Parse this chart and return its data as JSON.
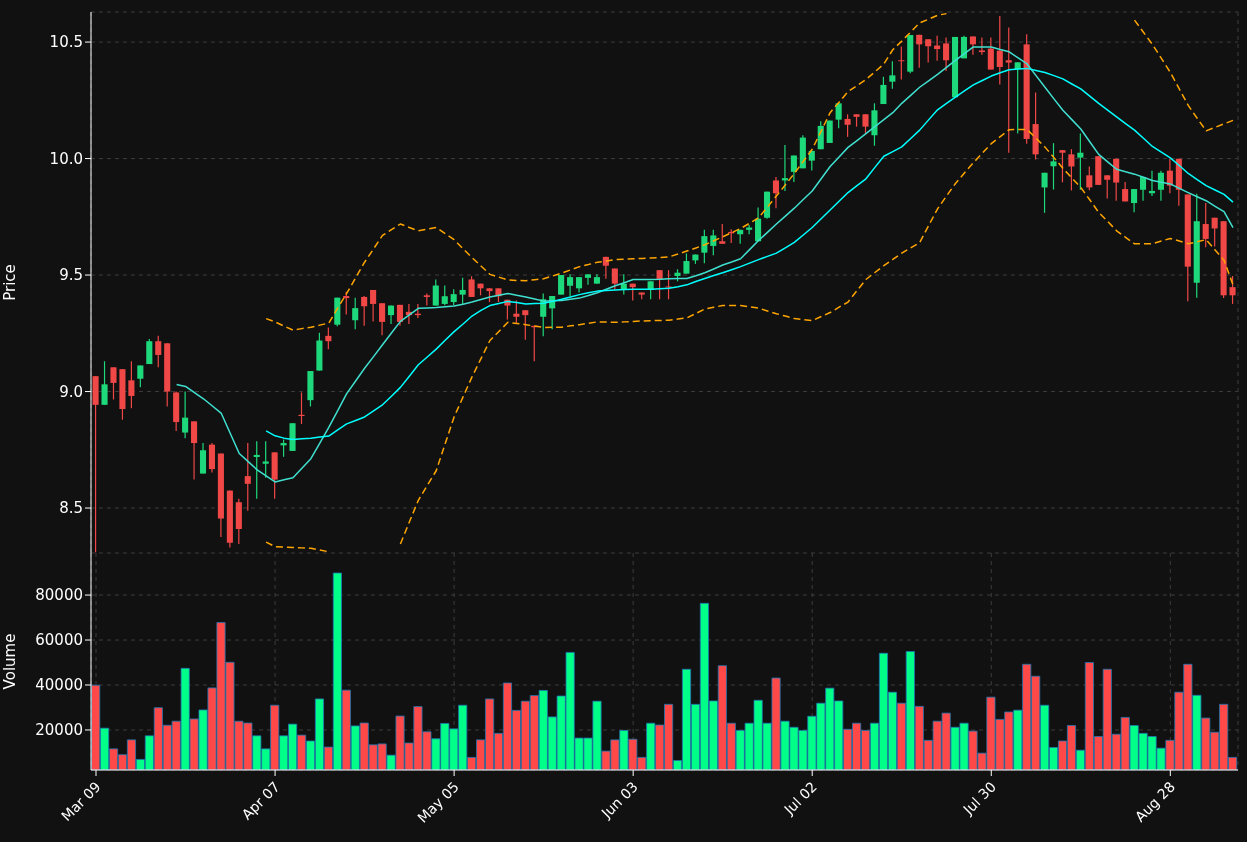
{
  "chart_data": [
    {
      "type": "candlestick",
      "ylabel": "Price",
      "grid": true,
      "tick_labels": "y",
      "ylim": [
        8.307,
        10.629
      ],
      "yticks": [
        8.5,
        {
          "value": 9,
          "label": "9.0"
        },
        9.5,
        {
          "value": 10,
          "label": "10.0"
        },
        10.5
      ],
      "categories": [
        null,
        null,
        null,
        null,
        null,
        null,
        null,
        null,
        null,
        null,
        null,
        null,
        null,
        null,
        null,
        null,
        null,
        null,
        null,
        null,
        null,
        null,
        null,
        null,
        null,
        null,
        null,
        null,
        null,
        null,
        null,
        null,
        null,
        null,
        null,
        null,
        null,
        null,
        null,
        null,
        null,
        null,
        null,
        null,
        null,
        null,
        null,
        null,
        null,
        null,
        null,
        null,
        null,
        null,
        null,
        null,
        null,
        null,
        null,
        null,
        null,
        null,
        null,
        null,
        null,
        null,
        null,
        null,
        null,
        null,
        null,
        null,
        null,
        null,
        null,
        null,
        null,
        null,
        null,
        null,
        null,
        null,
        null,
        null,
        null,
        null,
        null,
        null,
        null,
        null,
        null,
        null,
        null,
        null,
        null,
        null,
        null,
        null,
        null,
        null,
        null,
        null,
        null,
        null,
        null,
        null,
        null,
        null,
        null,
        null,
        null,
        null,
        null,
        null,
        null,
        null,
        null,
        null,
        null,
        null,
        null,
        null,
        null,
        null,
        null,
        null,
        null,
        null
      ],
      "ohlc": [
        [
          9.066,
          9.066,
          8.31,
          8.943
        ],
        [
          8.943,
          9.13,
          8.943,
          9.031
        ],
        [
          9.104,
          9.104,
          8.966,
          9.037
        ],
        [
          9.096,
          9.096,
          8.879,
          8.925
        ],
        [
          9.048,
          9.13,
          8.928,
          8.981
        ],
        [
          9.055,
          9.112,
          9.018,
          9.112
        ],
        [
          9.118,
          9.225,
          9.118,
          9.216
        ],
        [
          9.216,
          9.239,
          9.104,
          9.157
        ],
        [
          9.207,
          9.207,
          8.936,
          9.0
        ],
        [
          8.996,
          9.0,
          8.831,
          8.869
        ],
        [
          8.824,
          9.0,
          8.8,
          8.888
        ],
        [
          8.872,
          8.872,
          8.622,
          8.779
        ],
        [
          8.648,
          8.779,
          8.648,
          8.748
        ],
        [
          8.772,
          8.779,
          8.652,
          8.667
        ],
        [
          8.734,
          8.734,
          8.376,
          8.455
        ],
        [
          8.575,
          8.575,
          8.331,
          8.351
        ],
        [
          8.525,
          8.54,
          8.346,
          8.41
        ],
        [
          8.637,
          8.779,
          8.488,
          8.604
        ],
        [
          8.719,
          8.787,
          8.54,
          8.728
        ],
        [
          8.69,
          8.787,
          8.63,
          8.7
        ],
        [
          8.739,
          8.739,
          8.54,
          8.622
        ],
        [
          8.769,
          8.794,
          8.72,
          8.779
        ],
        [
          8.745,
          8.864,
          8.745,
          8.864
        ],
        [
          8.9,
          8.996,
          8.861,
          8.895
        ],
        [
          8.963,
          9.088,
          8.936,
          9.088
        ],
        [
          9.09,
          9.252,
          9.09,
          9.219
        ],
        [
          9.239,
          9.275,
          9.182,
          9.216
        ],
        [
          9.287,
          9.403,
          9.28,
          9.403
        ],
        [
          9.41,
          9.428,
          9.331,
          9.401
        ],
        [
          9.306,
          9.403,
          9.267,
          9.358
        ],
        [
          9.406,
          9.41,
          9.282,
          9.366
        ],
        [
          9.436,
          9.436,
          9.301,
          9.376
        ],
        [
          9.379,
          9.379,
          9.242,
          9.299
        ],
        [
          9.328,
          9.369,
          9.29,
          9.369
        ],
        [
          9.372,
          9.372,
          9.282,
          9.299
        ],
        [
          9.342,
          9.376,
          9.29,
          9.328
        ],
        [
          9.334,
          9.376,
          9.316,
          9.328
        ],
        [
          9.413,
          9.421,
          9.369,
          9.406
        ],
        [
          9.369,
          9.481,
          9.369,
          9.455
        ],
        [
          9.376,
          9.455,
          9.37,
          9.409
        ],
        [
          9.384,
          9.439,
          9.37,
          9.418
        ],
        [
          9.416,
          9.488,
          9.376,
          9.436
        ],
        [
          9.481,
          9.495,
          9.406,
          9.406
        ],
        [
          9.463,
          9.463,
          9.413,
          9.443
        ],
        [
          9.443,
          9.443,
          9.384,
          9.431
        ],
        [
          9.443,
          9.443,
          9.384,
          9.409
        ],
        [
          9.394,
          9.394,
          9.309,
          9.369
        ],
        [
          9.334,
          9.391,
          9.294,
          9.321
        ],
        [
          9.349,
          9.349,
          9.222,
          9.328
        ],
        [
          9.282,
          9.282,
          9.13,
          9.276
        ],
        [
          9.321,
          9.421,
          9.237,
          9.396
        ],
        [
          9.357,
          9.41,
          9.267,
          9.41
        ],
        [
          9.416,
          9.5,
          9.416,
          9.5
        ],
        [
          9.454,
          9.503,
          9.41,
          9.491
        ],
        [
          9.443,
          9.491,
          9.425,
          9.491
        ],
        [
          9.488,
          9.503,
          9.458,
          9.503
        ],
        [
          9.463,
          9.503,
          9.463,
          9.491
        ],
        [
          9.578,
          9.578,
          9.484,
          9.54
        ],
        [
          9.528,
          9.528,
          9.436,
          9.463
        ],
        [
          9.44,
          9.503,
          9.416,
          9.463
        ],
        [
          9.463,
          9.463,
          9.391,
          9.448
        ],
        [
          9.425,
          9.425,
          9.396,
          9.416
        ],
        [
          9.436,
          9.473,
          9.396,
          9.473
        ],
        [
          9.521,
          9.521,
          9.396,
          9.481
        ],
        [
          9.451,
          9.521,
          9.396,
          9.448
        ],
        [
          9.496,
          9.525,
          9.473,
          9.51
        ],
        [
          9.506,
          9.593,
          9.506,
          9.56
        ],
        [
          9.563,
          9.588,
          9.548,
          9.588
        ],
        [
          9.596,
          9.694,
          9.551,
          9.667
        ],
        [
          9.625,
          9.694,
          9.585,
          9.67
        ],
        [
          9.645,
          9.719,
          9.634,
          9.634
        ],
        [
          9.685,
          9.697,
          9.637,
          9.679
        ],
        [
          9.675,
          9.694,
          9.634,
          9.694
        ],
        [
          9.694,
          9.715,
          9.675,
          9.704
        ],
        [
          9.645,
          9.79,
          9.645,
          9.742
        ],
        [
          9.746,
          9.858,
          9.742,
          9.858
        ],
        [
          9.906,
          9.921,
          9.787,
          9.851
        ],
        [
          9.906,
          10.058,
          9.861,
          9.916
        ],
        [
          9.943,
          10.013,
          9.899,
          10.013
        ],
        [
          9.958,
          10.1,
          9.958,
          10.09
        ],
        [
          9.991,
          10.033,
          9.949,
          10.033
        ],
        [
          10.04,
          10.16,
          10.04,
          10.14
        ],
        [
          10.067,
          10.163,
          10.067,
          10.163
        ],
        [
          10.167,
          10.237,
          10.13,
          10.237
        ],
        [
          10.17,
          10.19,
          10.093,
          10.145
        ],
        [
          10.19,
          10.19,
          10.137,
          10.179
        ],
        [
          10.19,
          10.19,
          10.107,
          10.137
        ],
        [
          10.1,
          10.237,
          10.055,
          10.207
        ],
        [
          10.234,
          10.351,
          10.234,
          10.316
        ],
        [
          10.33,
          10.418,
          10.3,
          10.357
        ],
        [
          10.422,
          10.481,
          10.339,
          10.419
        ],
        [
          10.373,
          10.53,
          10.366,
          10.53
        ],
        [
          10.531,
          10.531,
          10.39,
          10.49
        ],
        [
          10.512,
          10.512,
          10.412,
          10.482
        ],
        [
          10.485,
          10.527,
          10.42,
          10.47
        ],
        [
          10.494,
          10.52,
          10.376,
          10.422
        ],
        [
          10.263,
          10.522,
          10.26,
          10.522
        ],
        [
          10.43,
          10.527,
          10.43,
          10.522
        ],
        [
          10.524,
          10.524,
          10.445,
          10.49
        ],
        [
          10.464,
          10.52,
          10.445,
          10.457
        ],
        [
          10.472,
          10.52,
          10.382,
          10.382
        ],
        [
          10.463,
          10.612,
          10.318,
          10.393
        ],
        [
          10.422,
          10.563,
          10.025,
          10.412
        ],
        [
          10.384,
          10.413,
          10.107,
          10.413
        ],
        [
          10.49,
          10.533,
          10.063,
          10.084
        ],
        [
          10.148,
          10.284,
          9.996,
          10.018
        ],
        [
          9.876,
          9.939,
          9.767,
          9.939
        ],
        [
          9.967,
          10.066,
          9.867,
          9.988
        ],
        [
          10.036,
          10.036,
          9.898,
          10.025
        ],
        [
          10.018,
          10.04,
          9.863,
          9.966
        ],
        [
          10.004,
          10.107,
          9.866,
          10.025
        ],
        [
          9.928,
          9.966,
          9.864,
          9.876
        ],
        [
          10.01,
          10.01,
          9.887,
          9.887
        ],
        [
          9.928,
          9.928,
          9.828,
          9.909
        ],
        [
          9.999,
          9.999,
          9.819,
          9.897
        ],
        [
          9.869,
          9.899,
          9.816,
          9.816
        ],
        [
          9.809,
          9.869,
          9.769,
          9.869
        ],
        [
          9.866,
          9.921,
          9.819,
          9.921
        ],
        [
          9.851,
          9.948,
          9.839,
          9.861
        ],
        [
          9.866,
          9.948,
          9.819,
          9.939
        ],
        [
          9.948,
          9.999,
          9.851,
          9.884
        ],
        [
          9.999,
          9.999,
          9.797,
          9.866
        ],
        [
          9.846,
          9.846,
          9.387,
          9.536
        ],
        [
          9.467,
          9.849,
          9.403,
          9.731
        ],
        [
          9.719,
          9.809,
          9.619,
          9.655
        ],
        [
          9.746,
          9.746,
          9.622,
          9.7
        ],
        [
          9.731,
          9.731,
          9.401,
          9.413
        ],
        [
          9.448,
          9.496,
          9.376,
          9.413
        ]
      ],
      "colors": [
        "#f04747",
        "#1ed97b",
        "#f04747",
        "#f04747",
        "#f04747",
        "#1ed97b",
        "#1ed97b",
        "#f04747",
        "#f04747",
        "#f04747",
        "#1ed97b",
        "#f04747",
        "#1ed97b",
        "#f04747",
        "#f04747",
        "#f04747",
        "#f04747",
        "#f04747",
        "#1ed97b",
        "#1ed97b",
        "#f04747",
        "#1ed97b",
        "#1ed97b",
        "#f04747",
        "#1ed97b",
        "#1ed97b",
        "#f04747",
        "#1ed97b",
        "#f04747",
        "#1ed97b",
        "#f04747",
        "#f04747",
        "#f04747",
        "#1ed97b",
        "#f04747",
        "#f04747",
        "#f04747",
        "#f04747",
        "#1ed97b",
        "#1ed97b",
        "#1ed97b",
        "#1ed97b",
        "#f04747",
        "#f04747",
        "#f04747",
        "#f04747",
        "#f04747",
        "#f04747",
        "#f04747",
        "#f04747",
        "#1ed97b",
        "#1ed97b",
        "#1ed97b",
        "#1ed97b",
        "#1ed97b",
        "#1ed97b",
        "#1ed97b",
        "#f04747",
        "#f04747",
        "#1ed97b",
        "#f04747",
        "#f04747",
        "#1ed97b",
        "#f04747",
        "#f04747",
        "#1ed97b",
        "#1ed97b",
        "#1ed97b",
        "#1ed97b",
        "#1ed97b",
        "#f04747",
        "#f04747",
        "#1ed97b",
        "#1ed97b",
        "#1ed97b",
        "#1ed97b",
        "#f04747",
        "#1ed97b",
        "#1ed97b",
        "#1ed97b",
        "#1ed97b",
        "#1ed97b",
        "#1ed97b",
        "#1ed97b",
        "#f04747",
        "#f04747",
        "#f04747",
        "#1ed97b",
        "#1ed97b",
        "#1ed97b",
        "#f04747",
        "#1ed97b",
        "#f04747",
        "#f04747",
        "#f04747",
        "#f04747",
        "#1ed97b",
        "#1ed97b",
        "#f04747",
        "#f04747",
        "#f04747",
        "#f04747",
        "#f04747",
        "#1ed97b",
        "#f04747",
        "#f04747",
        "#1ed97b",
        "#1ed97b",
        "#f04747",
        "#f04747",
        "#1ed97b",
        "#f04747",
        "#f04747",
        "#f04747",
        "#f04747",
        "#f04747",
        "#1ed97b",
        "#1ed97b",
        "#1ed97b",
        "#1ed97b",
        "#f04747",
        "#f04747",
        "#f04747",
        "#1ed97b",
        "#f04747",
        "#f04747",
        "#f04747",
        "#f04747"
      ],
      "series": [
        {
          "type": "line",
          "color": "#40e0d0",
          "line_style": "solid",
          "values": [
            null,
            null,
            null,
            null,
            null,
            null,
            null,
            null,
            null,
            9.03,
            9.022,
            8.995,
            8.969,
            8.938,
            8.906,
            8.82,
            8.734,
            8.699,
            8.664,
            8.638,
            8.612,
            8.621,
            8.63,
            8.671,
            8.712,
            8.779,
            8.846,
            8.918,
            8.991,
            9.045,
            9.1,
            9.15,
            9.201,
            9.251,
            9.301,
            9.329,
            9.357,
            9.359,
            9.361,
            9.364,
            9.367,
            9.375,
            9.384,
            9.395,
            9.406,
            9.413,
            9.421,
            9.413,
            9.406,
            9.397,
            9.388,
            9.39,
            9.391,
            9.396,
            9.401,
            9.412,
            9.424,
            9.439,
            9.454,
            9.467,
            9.481,
            9.481,
            9.481,
            9.482,
            9.484,
            9.485,
            9.485,
            9.497,
            9.51,
            9.526,
            9.543,
            9.556,
            9.57,
            9.609,
            9.648,
            9.683,
            9.719,
            9.753,
            9.787,
            9.824,
            9.861,
            9.913,
            9.966,
            10.007,
            10.048,
            10.077,
            10.107,
            10.137,
            10.167,
            10.197,
            10.237,
            10.271,
            10.306,
            10.333,
            10.361,
            10.391,
            10.421,
            10.45,
            10.479,
            10.479,
            10.479,
            10.468,
            10.458,
            10.432,
            10.406,
            10.356,
            10.306,
            10.256,
            10.207,
            10.167,
            10.127,
            10.072,
            10.018,
            9.986,
            9.954,
            9.943,
            9.933,
            9.92,
            9.906,
            9.898,
            9.891,
            9.872,
            9.854,
            9.836,
            9.819,
            9.795,
            9.772,
            9.704
          ]
        },
        {
          "type": "line",
          "color": "#00ffff",
          "line_style": "solid",
          "values": [
            null,
            null,
            null,
            null,
            null,
            null,
            null,
            null,
            null,
            null,
            null,
            null,
            null,
            null,
            null,
            null,
            null,
            null,
            null,
            8.831,
            8.81,
            8.8,
            8.794,
            8.797,
            8.8,
            8.805,
            8.809,
            8.835,
            8.861,
            8.876,
            8.891,
            8.917,
            8.943,
            8.98,
            9.018,
            9.066,
            9.115,
            9.148,
            9.182,
            9.22,
            9.257,
            9.29,
            9.324,
            9.348,
            9.369,
            9.378,
            9.387,
            9.382,
            9.376,
            9.378,
            9.379,
            9.387,
            9.396,
            9.406,
            9.416,
            9.424,
            9.431,
            9.434,
            9.436,
            9.438,
            9.439,
            9.439,
            9.439,
            9.441,
            9.443,
            9.45,
            9.458,
            9.472,
            9.485,
            9.498,
            9.51,
            9.523,
            9.536,
            9.551,
            9.566,
            9.58,
            9.594,
            9.617,
            9.64,
            9.672,
            9.704,
            9.742,
            9.779,
            9.817,
            9.854,
            9.884,
            9.913,
            9.962,
            10.01,
            10.03,
            10.05,
            10.086,
            10.122,
            10.166,
            10.209,
            10.237,
            10.264,
            10.29,
            10.316,
            10.335,
            10.354,
            10.368,
            10.381,
            10.384,
            10.387,
            10.378,
            10.369,
            10.356,
            10.342,
            10.32,
            10.299,
            10.268,
            10.237,
            10.208,
            10.179,
            10.15,
            10.122,
            10.087,
            10.052,
            10.028,
            10.003,
            9.97,
            9.936,
            9.91,
            9.884,
            9.865,
            9.846,
            9.813
          ]
        },
        {
          "type": "line",
          "color": "#ffa500",
          "line_style": "dashed",
          "values": [
            null,
            null,
            null,
            null,
            null,
            null,
            null,
            null,
            null,
            null,
            null,
            null,
            null,
            null,
            null,
            null,
            null,
            null,
            null,
            9.313,
            9.299,
            9.281,
            9.264,
            9.27,
            9.276,
            9.285,
            9.294,
            9.358,
            9.421,
            9.488,
            9.555,
            9.612,
            9.67,
            9.695,
            9.719,
            9.704,
            9.69,
            9.697,
            9.704,
            9.678,
            9.652,
            9.613,
            9.575,
            9.539,
            9.503,
            9.491,
            9.479,
            9.477,
            9.476,
            9.48,
            9.484,
            9.496,
            9.508,
            9.522,
            9.536,
            9.545,
            9.555,
            9.56,
            9.566,
            9.568,
            9.57,
            9.571,
            9.573,
            9.575,
            9.578,
            9.59,
            9.603,
            9.616,
            9.63,
            9.647,
            9.664,
            9.682,
            9.7,
            9.722,
            9.745,
            9.792,
            9.839,
            9.887,
            9.936,
            9.988,
            10.04,
            10.118,
            10.197,
            10.242,
            10.287,
            10.313,
            10.339,
            10.372,
            10.406,
            10.467,
            10.504,
            10.543,
            10.582,
            10.598,
            10.615,
            10.622,
            null,
            null,
            null,
            null,
            null,
            null,
            null,
            null,
            null,
            null,
            null,
            null,
            null,
            null,
            null,
            null,
            null,
            null,
            null,
            null,
            10.594,
            10.542,
            10.49,
            10.43,
            10.37,
            10.299,
            10.228,
            10.173,
            10.119,
            10.134,
            10.149,
            10.164
          ]
        },
        {
          "type": "line",
          "color": "#ffa500",
          "line_style": "dashed",
          "values": [
            null,
            null,
            null,
            null,
            null,
            null,
            null,
            null,
            null,
            null,
            null,
            null,
            null,
            null,
            null,
            null,
            null,
            null,
            null,
            8.354,
            8.334,
            8.332,
            8.331,
            8.329,
            8.327,
            8.32,
            8.312,
            null,
            null,
            null,
            null,
            null,
            null,
            null,
            8.346,
            8.44,
            8.533,
            8.597,
            8.66,
            8.776,
            8.891,
            8.977,
            9.063,
            9.141,
            9.219,
            9.258,
            9.297,
            9.292,
            9.287,
            9.281,
            9.275,
            9.276,
            9.276,
            9.282,
            9.287,
            9.293,
            9.299,
            9.298,
            9.297,
            9.299,
            9.301,
            9.303,
            9.304,
            9.305,
            9.306,
            9.311,
            9.316,
            9.335,
            9.354,
            9.362,
            9.369,
            9.369,
            9.369,
            9.364,
            9.358,
            9.346,
            9.334,
            9.324,
            9.313,
            9.309,
            9.304,
            9.322,
            9.339,
            9.362,
            9.384,
            9.433,
            9.481,
            9.511,
            9.54,
            9.567,
            9.594,
            9.617,
            9.639,
            9.712,
            9.784,
            9.839,
            9.893,
            9.938,
            9.982,
            10.023,
            10.064,
            10.094,
            10.124,
            10.125,
            10.125,
            10.087,
            10.049,
            10.004,
            9.958,
            9.917,
            9.876,
            9.823,
            9.769,
            9.73,
            9.69,
            9.662,
            9.634,
            9.634,
            9.634,
            9.646,
            9.657,
            9.646,
            9.634,
            9.643,
            9.652,
            9.608,
            9.563,
            9.458
          ]
        }
      ]
    },
    {
      "type": "bar",
      "ylabel": "Volume",
      "grid": true,
      "ylim": [
        2200,
        98700
      ],
      "yticks": [
        20000,
        40000,
        60000,
        80000
      ],
      "categories": [
        "Mar 09",
        null,
        null,
        null,
        null,
        null,
        null,
        null,
        null,
        null,
        null,
        null,
        null,
        null,
        null,
        null,
        null,
        null,
        null,
        null,
        "Apr 07",
        null,
        null,
        null,
        null,
        null,
        null,
        null,
        null,
        null,
        null,
        null,
        null,
        null,
        null,
        null,
        null,
        null,
        null,
        null,
        "May 05",
        null,
        null,
        null,
        null,
        null,
        null,
        null,
        null,
        null,
        null,
        null,
        null,
        null,
        null,
        null,
        null,
        null,
        null,
        null,
        "Jun 03",
        null,
        null,
        null,
        null,
        null,
        null,
        null,
        null,
        null,
        null,
        null,
        null,
        null,
        null,
        null,
        null,
        null,
        null,
        null,
        "Jul 02",
        null,
        null,
        null,
        null,
        null,
        null,
        null,
        null,
        null,
        null,
        null,
        null,
        null,
        null,
        null,
        null,
        null,
        null,
        null,
        "Jul 30",
        null,
        null,
        null,
        null,
        null,
        null,
        null,
        null,
        null,
        null,
        null,
        null,
        null,
        null,
        null,
        null,
        null,
        null,
        null,
        "Aug 28",
        null,
        null,
        null,
        null,
        null,
        null,
        null
      ],
      "values": [
        39900,
        20800,
        11600,
        9000,
        15600,
        6900,
        17400,
        29900,
        22100,
        23900,
        47400,
        24900,
        28900,
        38700,
        67800,
        50100,
        23900,
        23100,
        17400,
        11600,
        31000,
        17400,
        22600,
        17700,
        15100,
        33800,
        12400,
        89800,
        37700,
        21800,
        23100,
        13400,
        13800,
        8800,
        26200,
        14200,
        30400,
        19200,
        16100,
        22900,
        20500,
        31000,
        7800,
        15600,
        33800,
        18500,
        40900,
        28700,
        32800,
        35300,
        37600,
        25800,
        35100,
        54500,
        16400,
        16400,
        32800,
        10600,
        15600,
        19800,
        15900,
        7800,
        23000,
        22200,
        31400,
        6400,
        47000,
        31400,
        76300,
        32900,
        48600,
        23000,
        19800,
        23000,
        33200,
        23000,
        43100,
        23900,
        21200,
        19800,
        26100,
        31900,
        38600,
        32900,
        20300,
        23000,
        19800,
        23000,
        54100,
        36800,
        31900,
        54900,
        30500,
        15400,
        23900,
        27500,
        21200,
        23000,
        19500,
        9700,
        34600,
        24700,
        28000,
        28800,
        49200,
        43900,
        31000,
        12200,
        15100,
        22000,
        11000,
        50000,
        17100,
        47000,
        18100,
        25600,
        22000,
        18500,
        17100,
        11900,
        15400,
        36800,
        49200,
        35400,
        25300,
        19000,
        31400,
        7800
      ],
      "colors": [
        "#ff4848",
        "#00ff88",
        "#ff4848",
        "#ff4848",
        "#ff4848",
        "#00ff88",
        "#00ff88",
        "#ff4848",
        "#ff4848",
        "#ff4848",
        "#00ff88",
        "#ff4848",
        "#00ff88",
        "#ff4848",
        "#ff4848",
        "#ff4848",
        "#ff4848",
        "#ff4848",
        "#00ff88",
        "#00ff88",
        "#ff4848",
        "#00ff88",
        "#00ff88",
        "#ff4848",
        "#00ff88",
        "#00ff88",
        "#ff4848",
        "#00ff88",
        "#ff4848",
        "#00ff88",
        "#ff4848",
        "#ff4848",
        "#ff4848",
        "#00ff88",
        "#ff4848",
        "#ff4848",
        "#ff4848",
        "#ff4848",
        "#00ff88",
        "#00ff88",
        "#00ff88",
        "#00ff88",
        "#ff4848",
        "#ff4848",
        "#ff4848",
        "#ff4848",
        "#ff4848",
        "#ff4848",
        "#ff4848",
        "#ff4848",
        "#00ff88",
        "#00ff88",
        "#00ff88",
        "#00ff88",
        "#00ff88",
        "#00ff88",
        "#00ff88",
        "#ff4848",
        "#ff4848",
        "#00ff88",
        "#ff4848",
        "#ff4848",
        "#00ff88",
        "#ff4848",
        "#ff4848",
        "#00ff88",
        "#00ff88",
        "#00ff88",
        "#00ff88",
        "#00ff88",
        "#ff4848",
        "#ff4848",
        "#00ff88",
        "#00ff88",
        "#00ff88",
        "#00ff88",
        "#ff4848",
        "#00ff88",
        "#00ff88",
        "#00ff88",
        "#00ff88",
        "#00ff88",
        "#00ff88",
        "#00ff88",
        "#ff4848",
        "#ff4848",
        "#ff4848",
        "#00ff88",
        "#00ff88",
        "#00ff88",
        "#ff4848",
        "#00ff88",
        "#ff4848",
        "#ff4848",
        "#ff4848",
        "#ff4848",
        "#00ff88",
        "#00ff88",
        "#ff4848",
        "#ff4848",
        "#ff4848",
        "#ff4848",
        "#ff4848",
        "#00ff88",
        "#ff4848",
        "#ff4848",
        "#00ff88",
        "#00ff88",
        "#ff4848",
        "#ff4848",
        "#00ff88",
        "#ff4848",
        "#ff4848",
        "#ff4848",
        "#ff4848",
        "#ff4848",
        "#00ff88",
        "#00ff88",
        "#00ff88",
        "#00ff88",
        "#ff4848",
        "#ff4848",
        "#ff4848",
        "#00ff88",
        "#ff4848",
        "#ff4848",
        "#ff4848",
        "#ff4848"
      ]
    }
  ]
}
